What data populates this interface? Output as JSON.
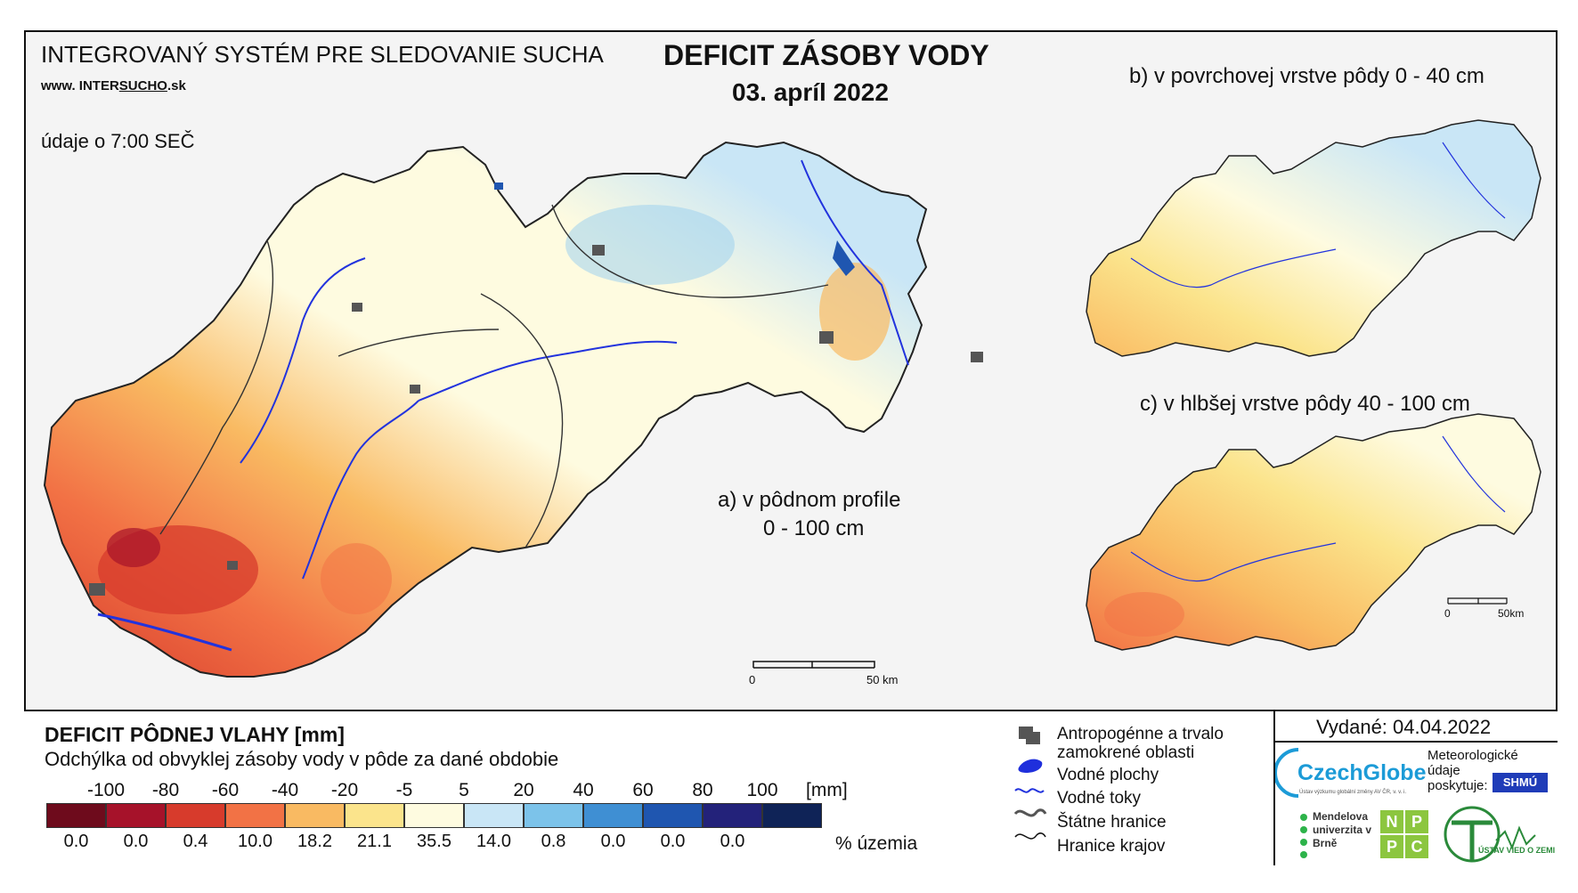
{
  "header": {
    "system_title": "INTEGROVANÝ SYSTÉM PRE SLEDOVANIE SUCHA",
    "url_prefix": "www. ",
    "url_inter": "INTER",
    "url_sucho": "SUCHO",
    "url_suffix": ".sk",
    "time_note": "údaje o 7:00 SEČ",
    "title": "DEFICIT ZÁSOBY VODY",
    "date": "03. apríl 2022"
  },
  "panels": {
    "a_line1": "a) v pôdnom profile",
    "a_line2": "0 - 100 cm",
    "b": "b) v povrchovej vrstve pôdy 0 - 40 cm",
    "c": "c) v hlbšej vrstve pôdy 40 - 100 cm"
  },
  "scalebars": {
    "main_zero": "0",
    "main_end": "50 km",
    "small_zero": "0",
    "small_end": "50km"
  },
  "legend": {
    "title": "DEFICIT PÔDNEJ VLAHY [mm]",
    "subtitle": "Odchýlka od obvyklej zásoby vody v pôde za dané obdobie",
    "class_labels": [
      "-100",
      "-80",
      "-60",
      "-40",
      "-20",
      "-5",
      "5",
      "20",
      "40",
      "60",
      "80",
      "100"
    ],
    "unit": "[mm]",
    "colors": [
      "#6e0b1c",
      "#a6122a",
      "#d73b2c",
      "#f27245",
      "#f9ba62",
      "#fbe48c",
      "#fefbe0",
      "#c9e6f6",
      "#7cc3ea",
      "#3f8fd3",
      "#1f56b0",
      "#23227a",
      "#0f2357"
    ],
    "percentages": [
      "0.0",
      "0.0",
      "0.4",
      "10.0",
      "18.2",
      "21.1",
      "35.5",
      "14.0",
      "0.8",
      "0.0",
      "0.0",
      "0.0"
    ],
    "percent_unit": "% územia"
  },
  "symbols": {
    "urban": "Antropogénne a trvalo",
    "urban2": "zamokrené oblasti",
    "water": "Vodné plochy",
    "rivers": "Vodné toky",
    "borders": "Štátne hranice",
    "regions": "Hranice krajov"
  },
  "issuer": {
    "issued": "Vydané: 04.04.2022",
    "czechglobe": "CzechGlobe",
    "czechglobe_sub": "Ústav výzkumu globální změny AV ČR, v. v. i.",
    "meteo1": "Meteorologické",
    "meteo2": "údaje",
    "meteo3": "poskytuje:",
    "shmu": "SHMÚ",
    "mendel": "Mendelova univerzita v Brně",
    "nppc": [
      "N",
      "P",
      "P",
      "C"
    ],
    "uvz": "ÚSTAV VIED O ZEMI"
  }
}
